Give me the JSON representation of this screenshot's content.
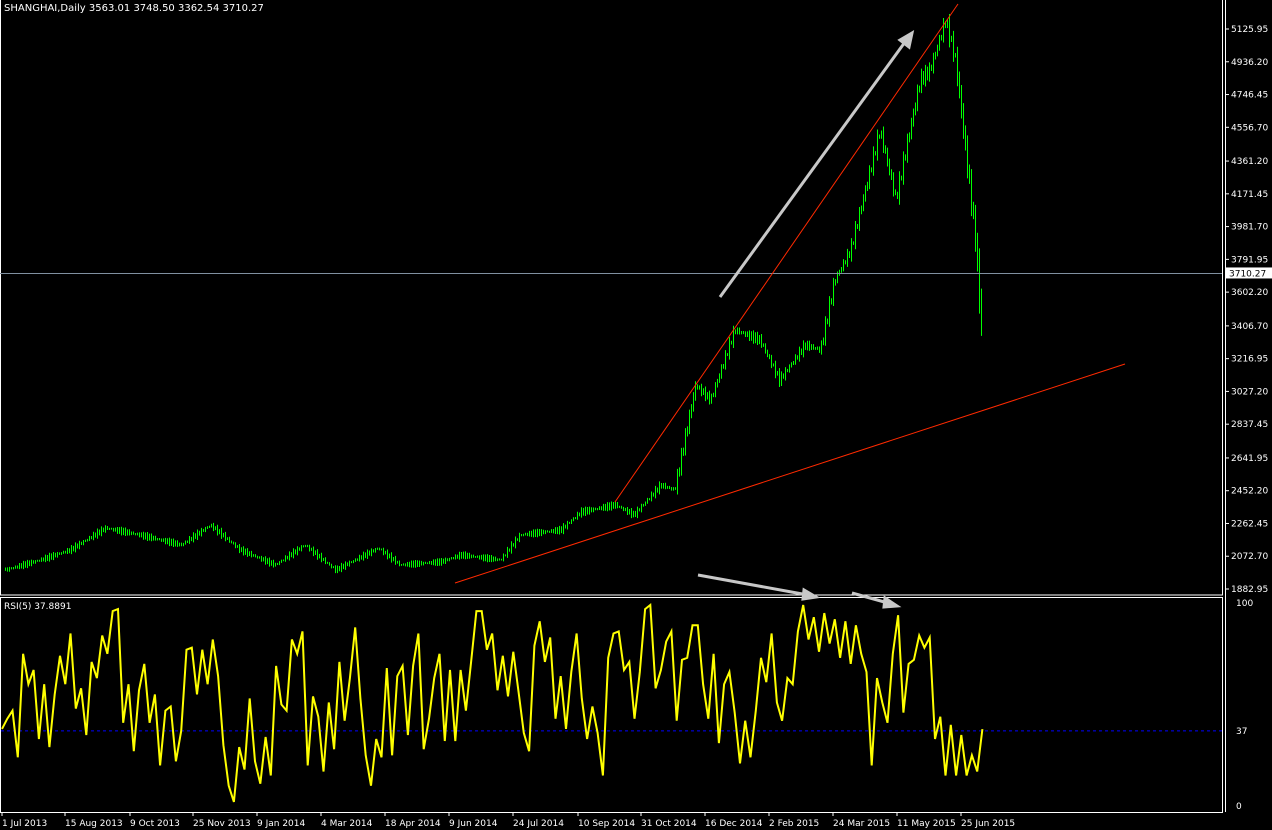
{
  "window": {
    "title": "SHANGHAI,Daily  3563.01 3748.50 3362.54 3710.27"
  },
  "colors": {
    "background": "#000000",
    "bars": "#00ff00",
    "rsi_line": "#ffff00",
    "rsi_level": "#0000ff",
    "trendlines": "#ff2a00",
    "arrows": "#c0c0c0",
    "price_line": "#8090a0",
    "axis": "#ffffff"
  },
  "chart_data": [
    {
      "type": "bar",
      "subtype": "ohlc",
      "symbol": "SHANGHAI",
      "timeframe": "Daily",
      "last": {
        "open": 3563.01,
        "high": 3748.5,
        "low": 3362.54,
        "close": 3710.27
      },
      "current_price_label": "3710.27",
      "y_ticks": [
        "5125.95",
        "4936.20",
        "4746.45",
        "4556.70",
        "4361.20",
        "4171.45",
        "3981.70",
        "3791.95",
        "3602.20",
        "3406.70",
        "3216.95",
        "3027.20",
        "2837.45",
        "2641.95",
        "2452.20",
        "2262.45",
        "2072.70",
        "1882.95"
      ],
      "ylim": [
        1882.95,
        5125.95
      ],
      "x_ticks": [
        {
          "date": "2013-07-01",
          "label": "1 Jul 2013"
        },
        {
          "date": "2013-08-15",
          "label": "15 Aug 2013"
        },
        {
          "date": "2013-10-09",
          "label": "9 Oct 2013"
        },
        {
          "date": "2013-11-25",
          "label": "25 Nov 2013"
        },
        {
          "date": "2014-01-09",
          "label": "9 Jan 2014"
        },
        {
          "date": "2014-03-04",
          "label": "4 Mar 2014"
        },
        {
          "date": "2014-04-18",
          "label": "18 Apr 2014"
        },
        {
          "date": "2014-06-09",
          "label": "9 Jun 2014"
        },
        {
          "date": "2014-07-24",
          "label": "24 Jul 2014"
        },
        {
          "date": "2014-09-10",
          "label": "10 Sep 2014"
        },
        {
          "date": "2014-10-31",
          "label": "31 Oct 2014"
        },
        {
          "date": "2014-12-16",
          "label": "16 Dec 2014"
        },
        {
          "date": "2015-02-02",
          "label": "2 Feb 2015"
        },
        {
          "date": "2015-03-24",
          "label": "24 Mar 2015"
        },
        {
          "date": "2015-05-11",
          "label": "11 May 2015"
        },
        {
          "date": "2015-06-25",
          "label": "25 Jun 2015"
        }
      ],
      "close_path": [
        [
          "2013-07-03",
          1993
        ],
        [
          "2013-07-28",
          2051
        ],
        [
          "2013-08-19",
          2109
        ],
        [
          "2013-09-18",
          2236
        ],
        [
          "2013-10-16",
          2196
        ],
        [
          "2013-11-16",
          2138
        ],
        [
          "2013-12-07",
          2253
        ],
        [
          "2013-12-28",
          2109
        ],
        [
          "2014-01-24",
          2022
        ],
        [
          "2014-02-18",
          2138
        ],
        [
          "2014-03-14",
          1993
        ],
        [
          "2014-04-13",
          2120
        ],
        [
          "2014-04-30",
          2022
        ],
        [
          "2014-06-02",
          2040
        ],
        [
          "2014-06-17",
          2080
        ],
        [
          "2014-07-15",
          2051
        ],
        [
          "2014-07-29",
          2196
        ],
        [
          "2014-08-28",
          2225
        ],
        [
          "2014-09-12",
          2329
        ],
        [
          "2014-10-10",
          2370
        ],
        [
          "2014-10-25",
          2312
        ],
        [
          "2014-11-14",
          2485
        ],
        [
          "2014-11-24",
          2456
        ],
        [
          "2014-12-09",
          3064
        ],
        [
          "2014-12-20",
          2977
        ],
        [
          "2015-01-07",
          3383
        ],
        [
          "2015-01-26",
          3325
        ],
        [
          "2015-02-10",
          3093
        ],
        [
          "2015-03-02",
          3296
        ],
        [
          "2015-03-14",
          3267
        ],
        [
          "2015-03-25",
          3672
        ],
        [
          "2015-04-06",
          3846
        ],
        [
          "2015-04-17",
          4194
        ],
        [
          "2015-04-28",
          4541
        ],
        [
          "2015-05-10",
          4136
        ],
        [
          "2015-05-17",
          4425
        ],
        [
          "2015-05-27",
          4831
        ],
        [
          "2015-06-03",
          4889
        ],
        [
          "2015-06-14",
          5178
        ],
        [
          "2015-06-21",
          4946
        ],
        [
          "2015-06-28",
          4425
        ],
        [
          "2015-07-05",
          3904
        ],
        [
          "2015-07-09",
          3400
        ],
        [
          "2015-07-10",
          3710.27
        ]
      ]
    },
    {
      "type": "line",
      "label": "RSI(5) 37.8891",
      "name": "RSI(5)",
      "value": 37.8891,
      "ylim": [
        0,
        100
      ],
      "y_ticks": [
        "100",
        "37",
        "0"
      ],
      "level": 37,
      "values": [
        38,
        43,
        47,
        24,
        75,
        60,
        67,
        33,
        60,
        29,
        55,
        74,
        60,
        85,
        48,
        58,
        35,
        71,
        63,
        84,
        75,
        96,
        97,
        41,
        60,
        27,
        57,
        70,
        41,
        55,
        20,
        47,
        49,
        22,
        37,
        77,
        78,
        55,
        77,
        60,
        82,
        64,
        30,
        10,
        2,
        29,
        18,
        53,
        22,
        11,
        34,
        15,
        69,
        50,
        47,
        82,
        75,
        86,
        20,
        54,
        44,
        17,
        51,
        28,
        71,
        42,
        63,
        88,
        53,
        25,
        10,
        33,
        24,
        68,
        25,
        64,
        69,
        35,
        69,
        85,
        28,
        43,
        63,
        75,
        32,
        67,
        32,
        67,
        47,
        71,
        96,
        96,
        77,
        85,
        57,
        74,
        54,
        76,
        56,
        36,
        27,
        79,
        91,
        71,
        83,
        43,
        64,
        38,
        66,
        85,
        53,
        33,
        49,
        36,
        15,
        73,
        85,
        86,
        67,
        71,
        43,
        66,
        97,
        99,
        58,
        67,
        81,
        86,
        42,
        72,
        73,
        89,
        89,
        60,
        43,
        75,
        31,
        60,
        66,
        46,
        21,
        42,
        24,
        47,
        73,
        61,
        85,
        51,
        42,
        63,
        60,
        86,
        99,
        82,
        93,
        76,
        95,
        80,
        92,
        73,
        91,
        70,
        89,
        75,
        66,
        20,
        63,
        51,
        41,
        75,
        94,
        46,
        70,
        72,
        84,
        78,
        83,
        33,
        44,
        15,
        40,
        15,
        35,
        15,
        25,
        17,
        37.89
      ]
    }
  ]
}
